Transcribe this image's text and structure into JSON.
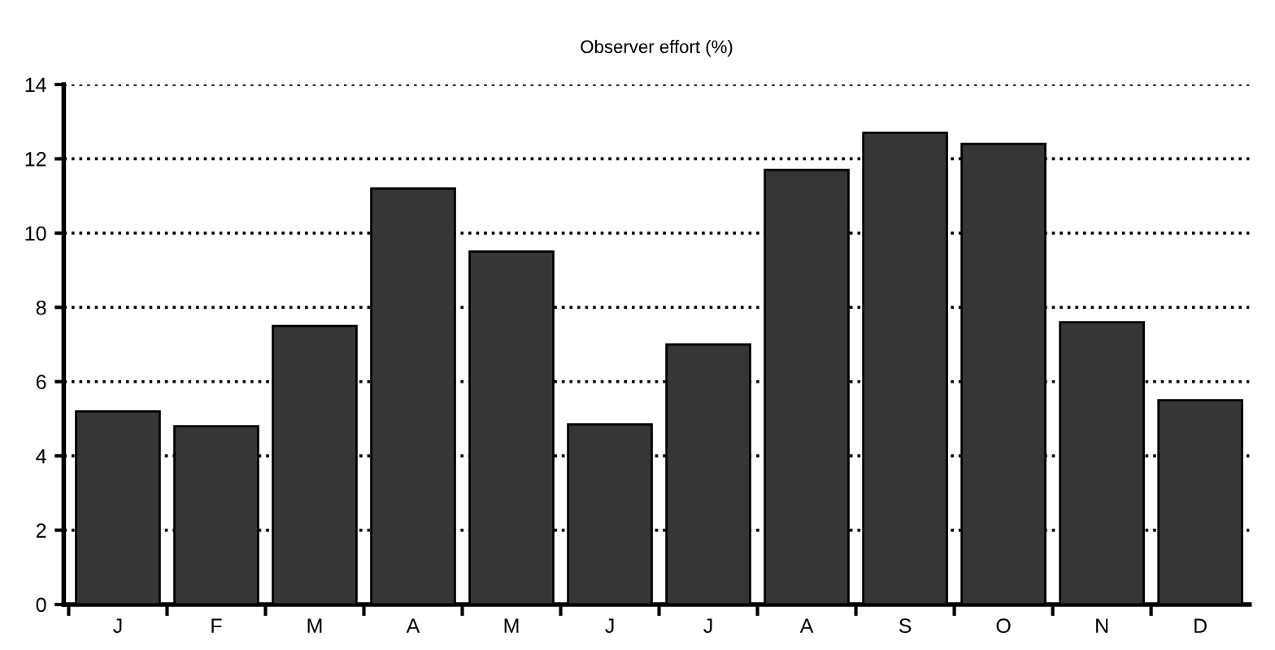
{
  "chart_data": {
    "type": "bar",
    "title": "Observer effort (%)",
    "categories": [
      "J",
      "F",
      "M",
      "A",
      "M",
      "J",
      "J",
      "A",
      "S",
      "O",
      "N",
      "D"
    ],
    "values": [
      5.2,
      4.8,
      7.5,
      11.2,
      9.5,
      4.85,
      7.0,
      11.7,
      12.7,
      12.4,
      7.6,
      5.5
    ],
    "color": "#363636",
    "ylim": [
      0,
      14
    ],
    "yticks": [
      0,
      2,
      4,
      6,
      8,
      10,
      12,
      14
    ],
    "grid": "y",
    "line_style": "dotted"
  }
}
